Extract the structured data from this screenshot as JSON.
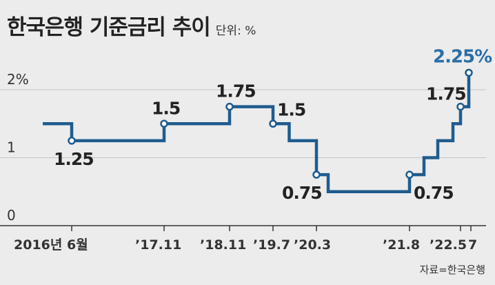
{
  "title": "한국은행 기준금리 추이",
  "unit_label": "단위: %",
  "source": "자료=한국은행",
  "colors": {
    "line": "#1f5c8e",
    "highlight": "#2a6fa8",
    "text": "#222222",
    "grid": "#c4c4c4"
  },
  "chart_data": {
    "type": "line",
    "step": true,
    "title": "한국은행 기준금리 추이",
    "unit": "%",
    "ylim": [
      0,
      2.5
    ],
    "y_ticks": [
      {
        "value": 0,
        "label": "0"
      },
      {
        "value": 1,
        "label": "1"
      },
      {
        "value": 2,
        "label": "2%"
      }
    ],
    "x_ticks": [
      "2016년 6월",
      "’17.11",
      "’18.11",
      "’19.7",
      "’20.3",
      "’21.8",
      "’22.5",
      "7"
    ],
    "series": [
      {
        "values": [
          {
            "t": 2016.05,
            "y": 1.5
          },
          {
            "t": 2016.45,
            "y": 1.25
          },
          {
            "t": 2017.85,
            "y": 1.5
          },
          {
            "t": 2018.85,
            "y": 1.75
          },
          {
            "t": 2019.5,
            "y": 1.5
          },
          {
            "t": 2019.75,
            "y": 1.25
          },
          {
            "t": 2020.17,
            "y": 0.75
          },
          {
            "t": 2020.35,
            "y": 0.5
          },
          {
            "t": 2021.62,
            "y": 0.75
          },
          {
            "t": 2021.85,
            "y": 1.0
          },
          {
            "t": 2022.05,
            "y": 1.25
          },
          {
            "t": 2022.3,
            "y": 1.5
          },
          {
            "t": 2022.4,
            "y": 1.75
          },
          {
            "t": 2022.55,
            "y": 2.25
          },
          {
            "t": 2022.58,
            "y": 2.25
          }
        ]
      }
    ],
    "annotations": [
      {
        "t": 2016.45,
        "y": 1.25,
        "label": "1.25"
      },
      {
        "t": 2017.85,
        "y": 1.5,
        "label": "1.5"
      },
      {
        "t": 2018.85,
        "y": 1.75,
        "label": "1.75"
      },
      {
        "t": 2019.5,
        "y": 1.5,
        "label": "1.5"
      },
      {
        "t": 2020.17,
        "y": 0.75,
        "label": "0.75"
      },
      {
        "t": 2021.62,
        "y": 0.75,
        "label": "0.75"
      },
      {
        "t": 2022.4,
        "y": 1.75,
        "label": "1.75"
      },
      {
        "t": 2022.55,
        "y": 2.25,
        "label": "2.25%"
      }
    ]
  }
}
